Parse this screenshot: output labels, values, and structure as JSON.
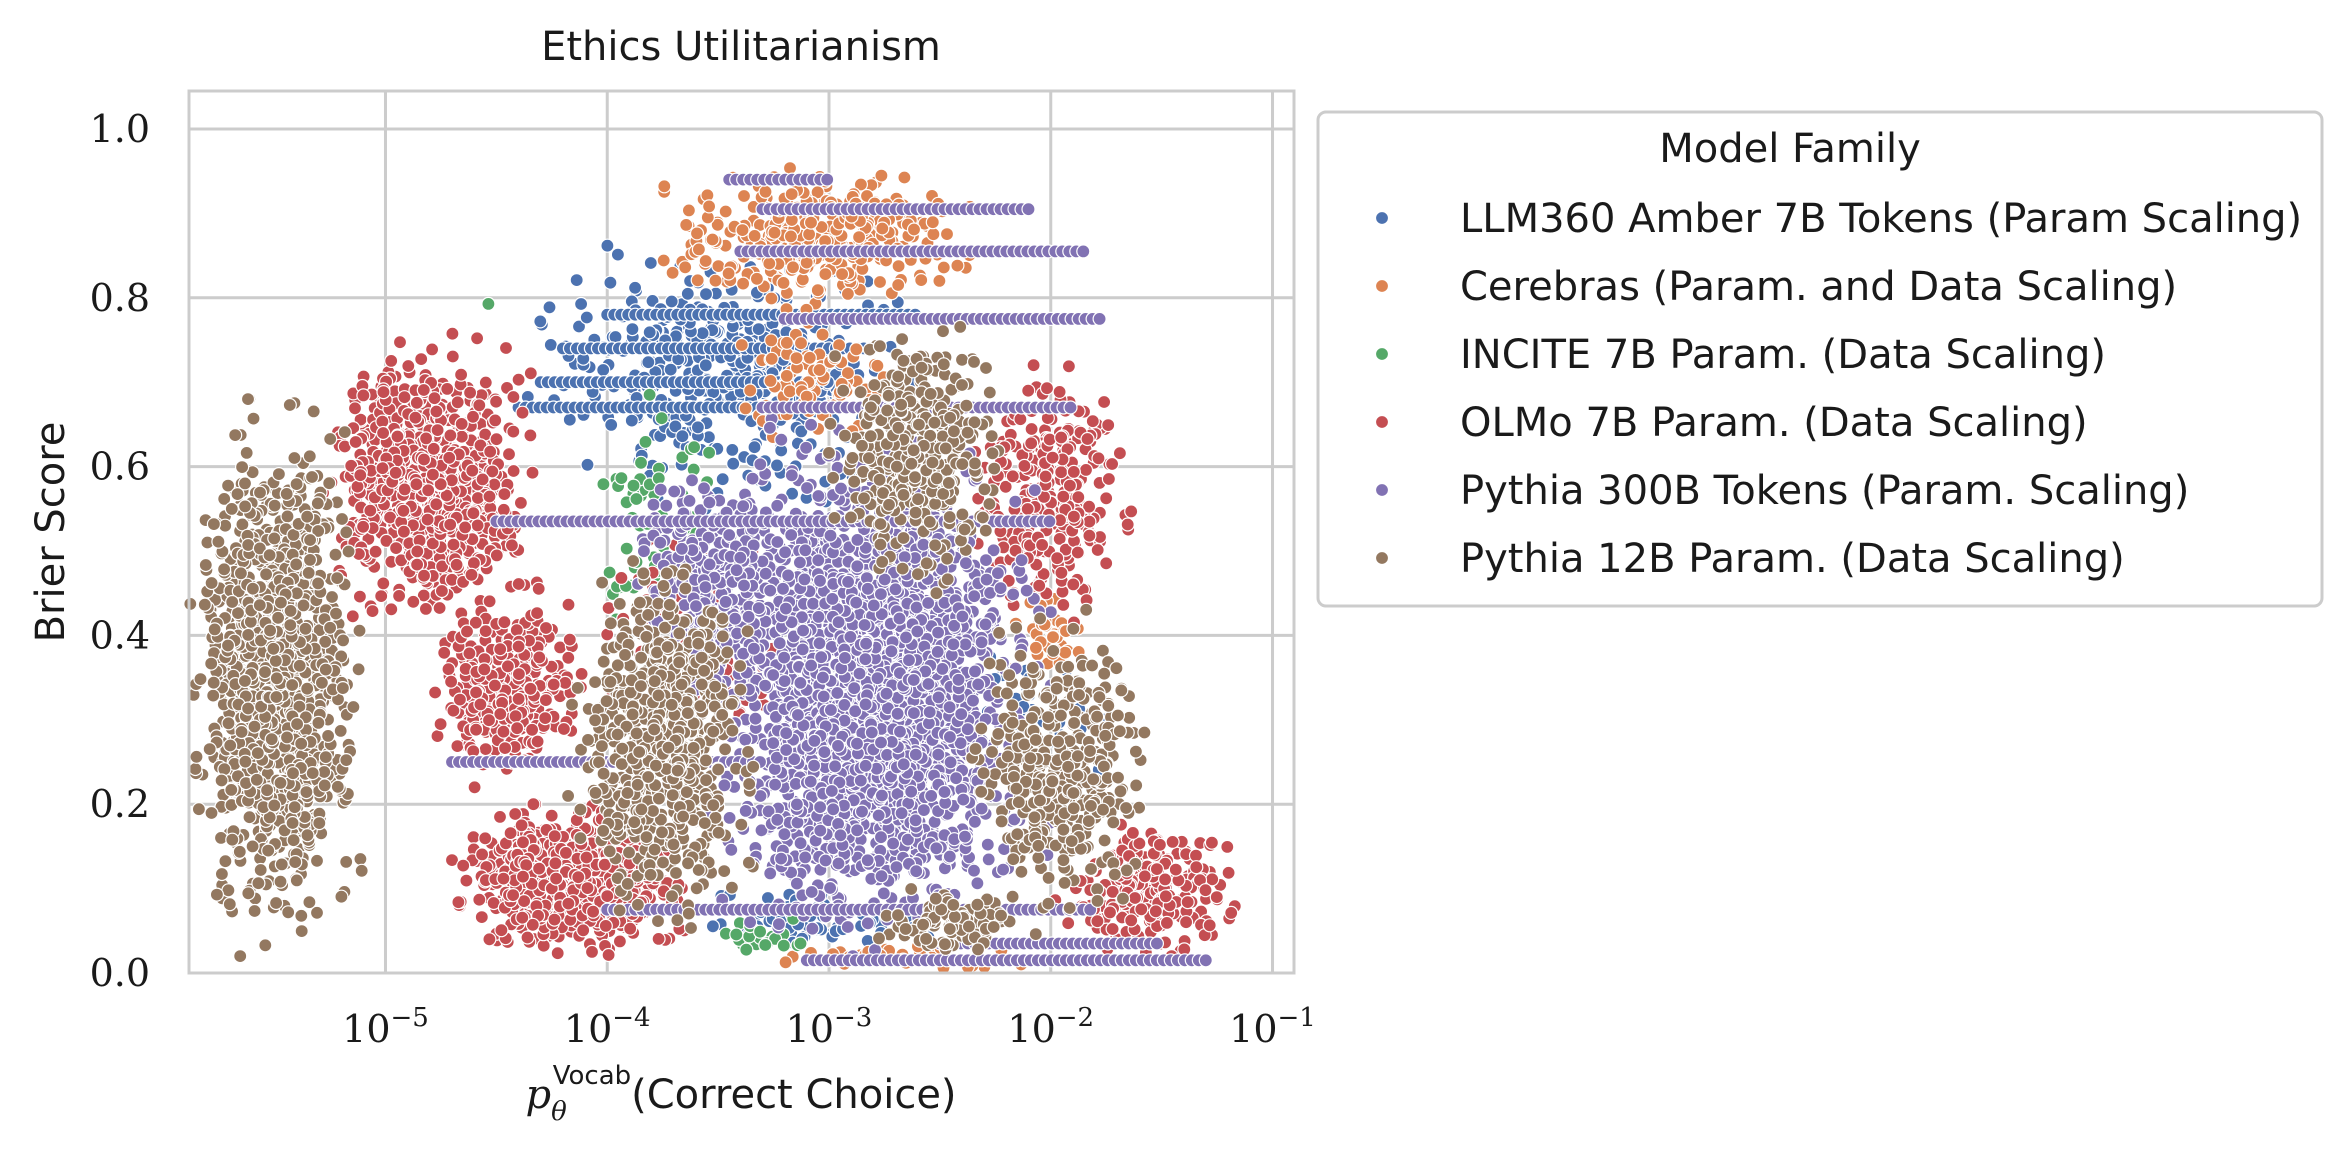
{
  "chart_data": {
    "type": "scatter",
    "title": "Ethics Utilitarianism",
    "xlabel_main": "(Correct Choice)",
    "xlabel_symbol": "p",
    "xlabel_sub": "θ",
    "xlabel_sup": "Vocab",
    "ylabel": "Brier Score",
    "x_scale": "log",
    "xlim": [
      1.3e-06,
      0.125
    ],
    "ylim": [
      0,
      1.045
    ],
    "x_ticks": [
      {
        "value": 1e-05,
        "base": "10",
        "exp": "−5"
      },
      {
        "value": 0.0001,
        "base": "10",
        "exp": "−4"
      },
      {
        "value": 0.001,
        "base": "10",
        "exp": "−3"
      },
      {
        "value": 0.01,
        "base": "10",
        "exp": "−2"
      },
      {
        "value": 0.1,
        "base": "10",
        "exp": "−1"
      }
    ],
    "y_ticks": [
      {
        "value": 0.0,
        "label": "0.0"
      },
      {
        "value": 0.2,
        "label": "0.2"
      },
      {
        "value": 0.4,
        "label": "0.4"
      },
      {
        "value": 0.6,
        "label": "0.6"
      },
      {
        "value": 0.8,
        "label": "0.8"
      },
      {
        "value": 1.0,
        "label": "1.0"
      }
    ],
    "grid": true,
    "legend": {
      "title": "Model Family",
      "placement": "outside-right"
    },
    "series": [
      {
        "name": "LLM360 Amber 7B Tokens (Param Scaling)",
        "color": "#4c72b0",
        "clusters": [
          {
            "xlog": [
              -4.4,
              -2.6
            ],
            "y": [
              0.55,
              0.87
            ],
            "n": 420
          },
          {
            "xlog": [
              -3.8,
              -2.5
            ],
            "y": [
              0.02,
              0.1
            ],
            "n": 60
          },
          {
            "xlog": [
              -2.6,
              -1.6
            ],
            "y": [
              0.2,
              0.4
            ],
            "n": 40
          }
        ],
        "stripes": [
          {
            "y": 0.78,
            "xlog": [
              -4.0,
              -2.6
            ]
          },
          {
            "y": 0.74,
            "xlog": [
              -4.2,
              -2.8
            ]
          },
          {
            "y": 0.7,
            "xlog": [
              -4.3,
              -3.0
            ]
          },
          {
            "y": 0.67,
            "xlog": [
              -4.4,
              -3.2
            ]
          }
        ]
      },
      {
        "name": "Cerebras (Param. and Data Scaling)",
        "color": "#dd8452",
        "clusters": [
          {
            "xlog": [
              -3.8,
              -2.3
            ],
            "y": [
              0.78,
              0.96
            ],
            "n": 380
          },
          {
            "xlog": [
              -3.5,
              -2.6
            ],
            "y": [
              0.62,
              0.78
            ],
            "n": 90
          },
          {
            "xlog": [
              -2.2,
              -1.8
            ],
            "y": [
              0.35,
              0.45
            ],
            "n": 40
          },
          {
            "xlog": [
              -3.3,
              -2.0
            ],
            "y": [
              0.0,
              0.04
            ],
            "n": 40
          }
        ],
        "stripes": []
      },
      {
        "name": "INCITE 7B Param. (Data Scaling)",
        "color": "#55a868",
        "clusters": [
          {
            "xlog": [
              -4.1,
              -3.5
            ],
            "y": [
              0.4,
              0.72
            ],
            "n": 60
          },
          {
            "xlog": [
              -3.6,
              -3.0
            ],
            "y": [
              0.02,
              0.08
            ],
            "n": 20
          },
          {
            "xlog": [
              -4.55,
              -4.5
            ],
            "y": [
              0.79,
              0.8
            ],
            "n": 1
          }
        ],
        "stripes": []
      },
      {
        "name": "OLMo 7B Param. (Data Scaling)",
        "color": "#c44e52",
        "clusters": [
          {
            "xlog": [
              -5.3,
              -4.3
            ],
            "y": [
              0.4,
              0.76
            ],
            "n": 900
          },
          {
            "xlog": [
              -4.8,
              -4.1
            ],
            "y": [
              0.22,
              0.45
            ],
            "n": 350
          },
          {
            "xlog": [
              -4.7,
              -3.6
            ],
            "y": [
              0.02,
              0.2
            ],
            "n": 900
          },
          {
            "xlog": [
              -2.4,
              -1.6
            ],
            "y": [
              0.4,
              0.74
            ],
            "n": 300
          },
          {
            "xlog": [
              -2.0,
              -1.1
            ],
            "y": [
              0.02,
              0.18
            ],
            "n": 250
          },
          {
            "xlog": [
              -4.0,
              -3.2
            ],
            "y": [
              0.25,
              0.55
            ],
            "n": 200
          }
        ],
        "stripes": []
      },
      {
        "name": "Pythia 300B Tokens (Param. Scaling)",
        "color": "#8172b3",
        "clusters": [
          {
            "xlog": [
              -3.6,
              -2.0
            ],
            "y": [
              0.02,
              0.66
            ],
            "n": 2600
          },
          {
            "xlog": [
              -3.9,
              -3.2
            ],
            "y": [
              0.3,
              0.62
            ],
            "n": 300
          }
        ],
        "stripes": [
          {
            "y": 0.94,
            "xlog": [
              -3.45,
              -3.0
            ]
          },
          {
            "y": 0.905,
            "xlog": [
              -3.3,
              -2.1
            ]
          },
          {
            "y": 0.855,
            "xlog": [
              -3.4,
              -1.85
            ]
          },
          {
            "y": 0.775,
            "xlog": [
              -3.2,
              -1.75
            ]
          },
          {
            "y": 0.67,
            "xlog": [
              -3.3,
              -1.9
            ]
          },
          {
            "y": 0.535,
            "xlog": [
              -4.5,
              -2.0
            ]
          },
          {
            "y": 0.25,
            "xlog": [
              -4.7,
              -3.3
            ]
          },
          {
            "y": 0.075,
            "xlog": [
              -4.0,
              -1.8
            ]
          },
          {
            "y": 0.035,
            "xlog": [
              -2.5,
              -1.5
            ]
          },
          {
            "y": 0.015,
            "xlog": [
              -3.1,
              -1.3
            ]
          }
        ]
      },
      {
        "name": "Pythia 12B Param. (Data Scaling)",
        "color": "#937860",
        "clusters": [
          {
            "xlog": [
              -5.88,
              -5.1
            ],
            "y": [
              0.02,
              0.68
            ],
            "n": 1300
          },
          {
            "xlog": [
              -4.2,
              -3.3
            ],
            "y": [
              0.05,
              0.5
            ],
            "n": 700
          },
          {
            "xlog": [
              -3.0,
              -2.2
            ],
            "y": [
              0.45,
              0.78
            ],
            "n": 400
          },
          {
            "xlog": [
              -2.4,
              -1.5
            ],
            "y": [
              0.05,
              0.45
            ],
            "n": 400
          },
          {
            "xlog": [
              -2.8,
              -2.0
            ],
            "y": [
              0.02,
              0.1
            ],
            "n": 100
          }
        ],
        "stripes": []
      }
    ]
  }
}
